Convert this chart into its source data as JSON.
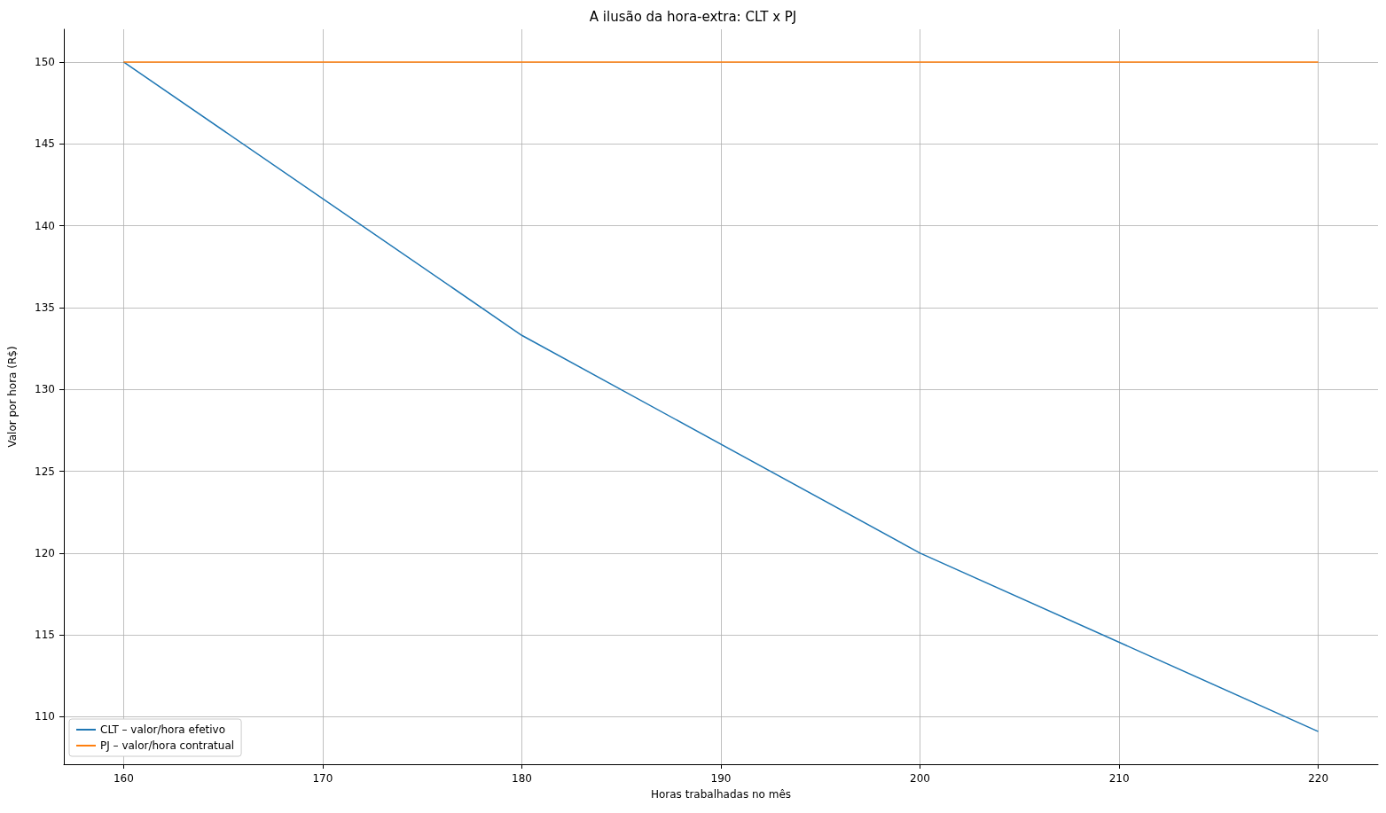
{
  "chart_data": {
    "type": "line",
    "title": "A ilusão da hora-extra: CLT x PJ",
    "xlabel": "Horas trabalhadas no mês",
    "ylabel": "Valor por hora (R$)",
    "x": [
      160,
      180,
      200,
      220
    ],
    "series": [
      {
        "name": "CLT – valor/hora efetivo",
        "color": "#1f77b4",
        "values": [
          150,
          133.3,
          120,
          109.1
        ]
      },
      {
        "name": "PJ – valor/hora contratual",
        "color": "#ff7f0e",
        "values": [
          150,
          150,
          150,
          150
        ]
      }
    ],
    "xlim": [
      157,
      223
    ],
    "xticks": [
      160,
      170,
      180,
      190,
      200,
      210,
      220
    ],
    "ylim": [
      107.1,
      152
    ],
    "yticks": [
      110,
      115,
      120,
      125,
      130,
      135,
      140,
      145,
      150
    ],
    "grid": true,
    "legend": "bottom left"
  }
}
